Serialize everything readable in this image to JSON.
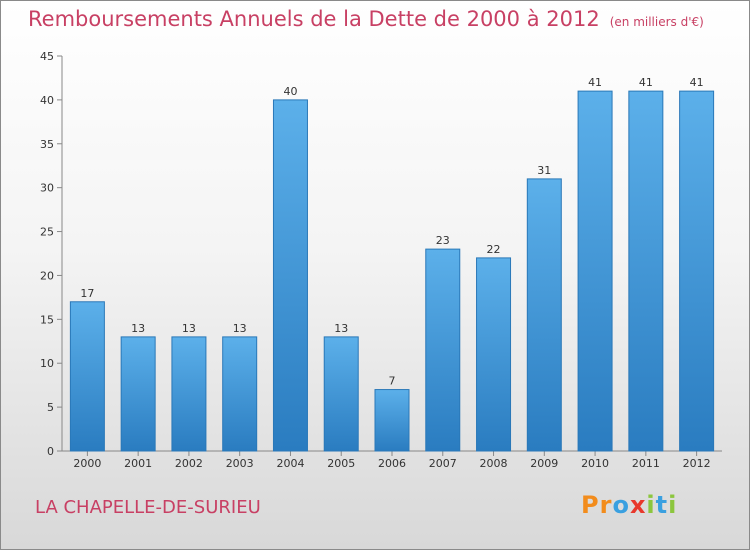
{
  "chart_data": {
    "type": "bar",
    "title": "Remboursements Annuels de la Dette de 2000 à 2012",
    "subtitle": "(en milliers d'€)",
    "categories": [
      "2000",
      "2001",
      "2002",
      "2003",
      "2004",
      "2005",
      "2006",
      "2007",
      "2008",
      "2009",
      "2010",
      "2011",
      "2012"
    ],
    "values": [
      17,
      13,
      13,
      13,
      40,
      13,
      7,
      23,
      22,
      31,
      41,
      41,
      41
    ],
    "ylim": [
      0,
      45
    ],
    "yticks": [
      0,
      5,
      10,
      15,
      20,
      25,
      30,
      35,
      40,
      45
    ],
    "grid": false,
    "bar_color": "#3a8fd6"
  },
  "commune": "LA CHAPELLE-DE-SURIEU",
  "logo": {
    "text": "Proxiti",
    "letters": [
      {
        "ch": "P",
        "color": "#f28c1c"
      },
      {
        "ch": "r",
        "color": "#f28c1c"
      },
      {
        "ch": "o",
        "color": "#3aa0e0"
      },
      {
        "ch": "x",
        "color": "#e8382c"
      },
      {
        "ch": "i",
        "color": "#8cc63e"
      },
      {
        "ch": "t",
        "color": "#3aa0e0"
      },
      {
        "ch": "i",
        "color": "#8cc63e"
      }
    ]
  }
}
